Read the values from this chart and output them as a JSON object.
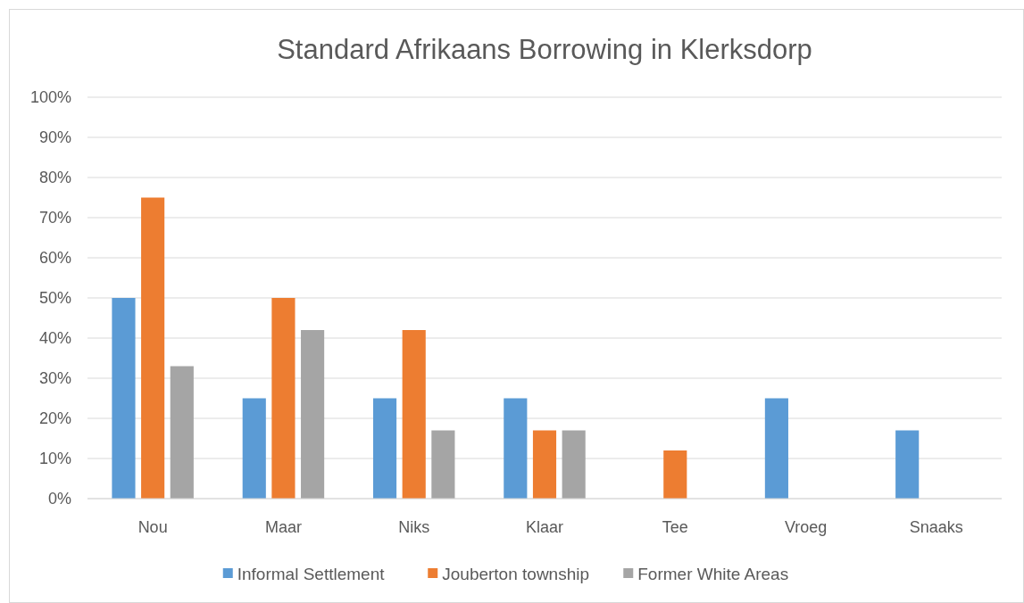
{
  "chart_data": {
    "type": "bar",
    "title": "Standard Afrikaans Borrowing in Klerksdorp",
    "categories": [
      "Nou",
      "Maar",
      "Niks",
      "Klaar",
      "Tee",
      "Vroeg",
      "Snaaks"
    ],
    "series": [
      {
        "name": "Informal Settlement",
        "color": "#5b9bd5",
        "values": [
          50,
          25,
          25,
          25,
          null,
          25,
          17
        ]
      },
      {
        "name": "Jouberton township",
        "color": "#ed7d31",
        "values": [
          75,
          50,
          42,
          17,
          12,
          null,
          null
        ]
      },
      {
        "name": "Former White Areas",
        "color": "#a5a5a5",
        "values": [
          33,
          42,
          17,
          17,
          null,
          null,
          null
        ]
      }
    ],
    "ylim": [
      0,
      100
    ],
    "yticks": [
      {
        "value": 0,
        "label": "0%"
      },
      {
        "value": 10,
        "label": "10%"
      },
      {
        "value": 20,
        "label": "20%"
      },
      {
        "value": 30,
        "label": "30%"
      },
      {
        "value": 40,
        "label": "40%"
      },
      {
        "value": 50,
        "label": "50%"
      },
      {
        "value": 60,
        "label": "60%"
      },
      {
        "value": 70,
        "label": "70%"
      },
      {
        "value": 80,
        "label": "80%"
      },
      {
        "value": 90,
        "label": "90%"
      },
      {
        "value": 100,
        "label": "100%"
      }
    ],
    "grid": "y",
    "legend": "bottom"
  }
}
